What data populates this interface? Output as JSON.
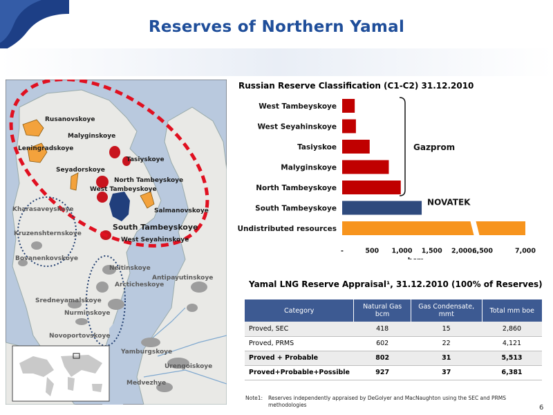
{
  "title": "Reserves of Northern Yamal",
  "map": {
    "labels": {
      "rusanovskoye": "Rusanovskoye",
      "malyginskoye": "Malyginskoye",
      "leningradskoye": "Leningradskoye",
      "seyadorskoye": "Seyadorskoye",
      "tasiyskoye": "Tasiyskoye",
      "north_tambeyskoye": "North Tambeyskoye",
      "west_tambeyskoye": "West Tambeyskoye",
      "kharasaveyskoye": "Kharasaveyskoye",
      "salmanovskoye": "Salmanovskoye",
      "kruzenshternskoye": "Kruzenshternskoye",
      "south_tambeyskoye": "South Tambeyskoye",
      "west_seyahinskoye": "West Seyahinskoye",
      "bovanenkovskoye": "Bovanenkovskoye",
      "neitinskoye": "Neitinskoye",
      "antipayutinskoye": "Antipayutinskoye",
      "arcticheskoye": "Arcticheskoye",
      "sredneyamalskoye": "Sredneyamalskoye",
      "nurminskoye": "Nurminskoye",
      "novoportovskoye": "Novoportovskoye",
      "yamburgskoye": "Yamburgskoye",
      "urengoiskoye": "Urengoiskoye",
      "medvezhye": "Medvezhye"
    }
  },
  "chart_data": {
    "type": "bar",
    "orientation": "horizontal",
    "title": "Russian Reserve Classification (C1-C2) 31.12.2010",
    "xlabel": "bcm",
    "categories": [
      "West Tambeyskoye",
      "West Seyahinskoye",
      "Tasiyskoe",
      "Malyginskoye",
      "North Tambeyskoye",
      "South Tambeyskoye",
      "Undistributed resources"
    ],
    "values": [
      210,
      230,
      460,
      780,
      980,
      1330,
      7000
    ],
    "bar_colors": [
      "#c00000",
      "#c00000",
      "#c00000",
      "#c00000",
      "#c00000",
      "#2e4a7d",
      "#f7941d"
    ],
    "x_tick_labels": [
      "-",
      "500",
      "1,000",
      "1,500",
      "2,000",
      "…",
      "6,500",
      "7,000"
    ],
    "axis_break": "between 2,000 and 6,500",
    "annotations": [
      {
        "text": "Gazprom",
        "applies_to": [
          "West Tambeyskoye",
          "West Seyahinskoye",
          "Tasiyskoe",
          "Malyginskoye",
          "North Tambeyskoye"
        ]
      },
      {
        "text": "NOVATEK",
        "applies_to": [
          "South Tambeyskoye"
        ]
      }
    ]
  },
  "table": {
    "title": "Yamal LNG Reserve Appraisal¹, 31.12.2010 (100% of Reserves)",
    "headers": [
      "Category",
      "Natural Gas bcm",
      "Gas Condensate, mmt",
      "Total mm boe"
    ],
    "rows": [
      [
        "Proved, SEC",
        "418",
        "15",
        "2,860"
      ],
      [
        "Proved, PRMS",
        "602",
        "22",
        "4,121"
      ],
      [
        "Proved + Probable",
        "802",
        "31",
        "5,513"
      ],
      [
        "Proved+Probable+Possible",
        "927",
        "37",
        "6,381"
      ]
    ]
  },
  "note": {
    "label": "Note1:",
    "text": "Reserves independently appraised by DeGolyer and MacNaughton using the SEC and PRMS methodologies"
  },
  "page_number": "6",
  "colors": {
    "title_blue": "#1f4e9a",
    "gazprom_red": "#c00000",
    "novatek_blue": "#2e4a7d",
    "undistributed_orange": "#f7941d",
    "table_header": "#3d5a92"
  }
}
